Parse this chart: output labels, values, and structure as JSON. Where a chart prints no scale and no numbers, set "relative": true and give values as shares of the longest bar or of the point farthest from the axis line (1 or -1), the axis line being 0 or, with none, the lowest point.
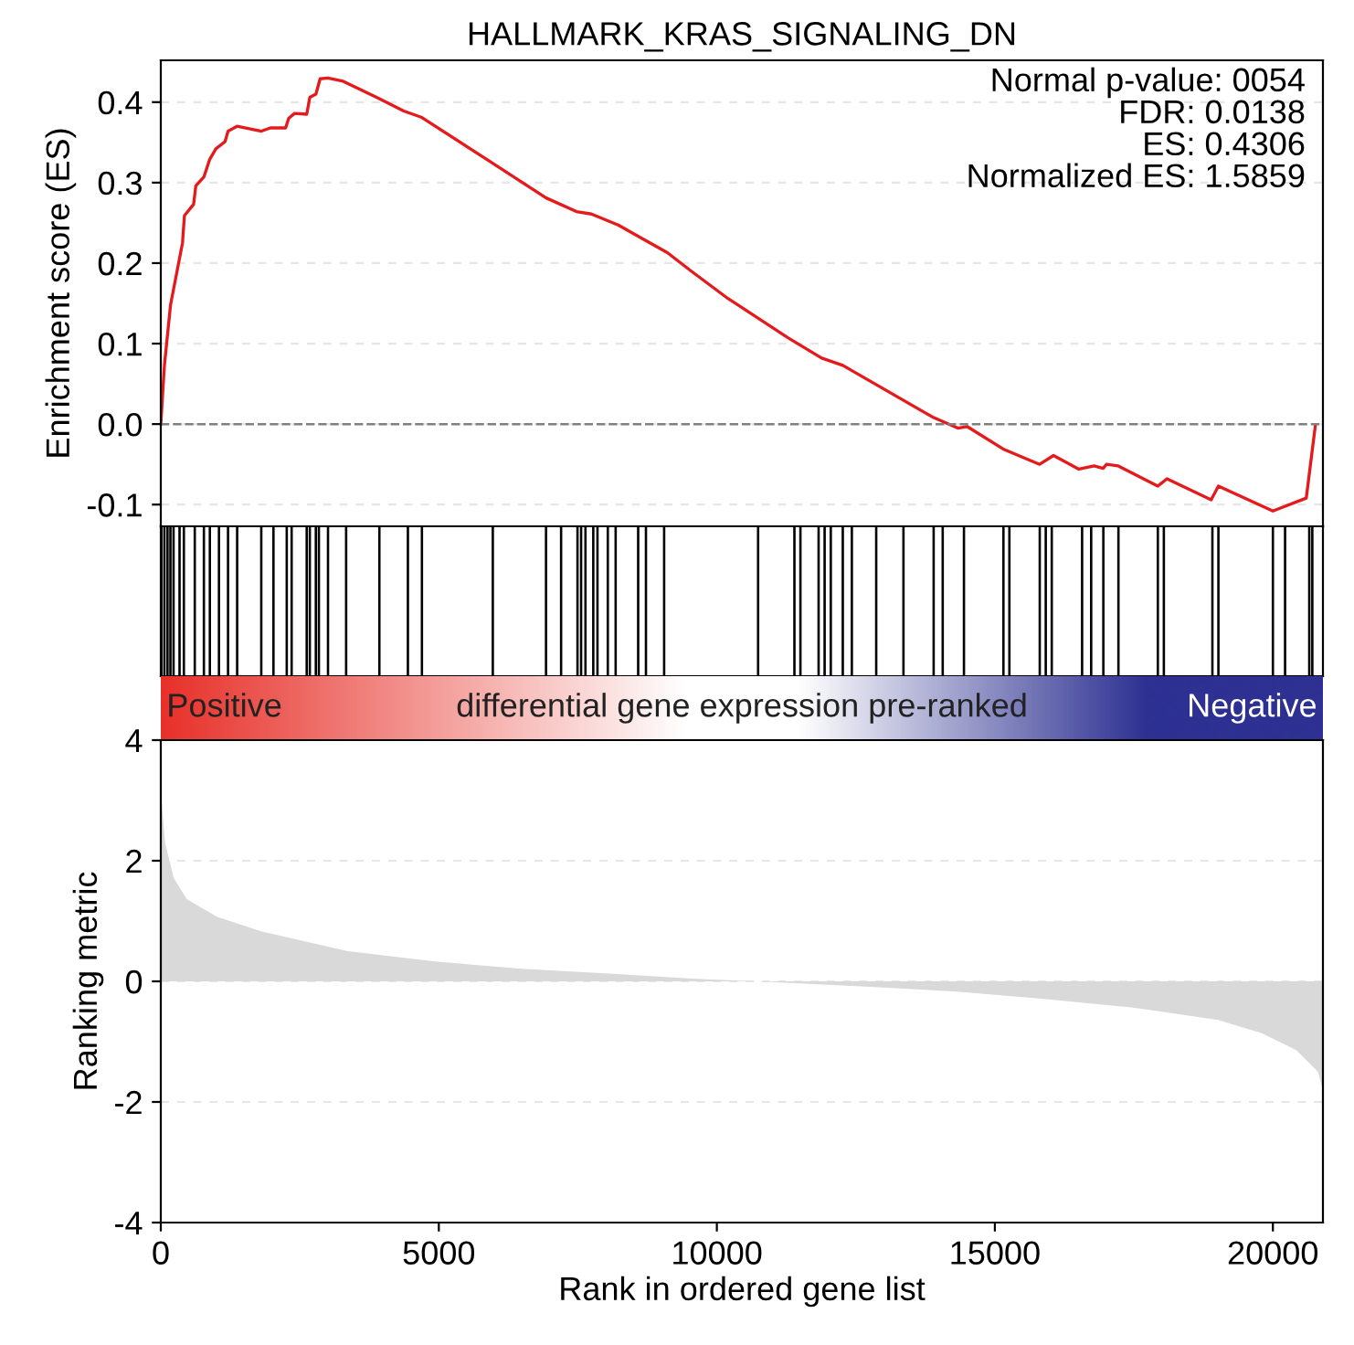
{
  "chart_data": [
    {
      "type": "line",
      "title": "HALLMARK_KRAS_SIGNALING_DN",
      "ylabel": "Enrichment score (ES)",
      "xlim": [
        0,
        20900
      ],
      "ylim": [
        -0.127,
        0.452
      ],
      "yticks": [
        {
          "value": -0.1,
          "label": "-0.1"
        },
        {
          "value": 0.0,
          "label": "0.0"
        },
        0.1,
        0.2,
        0.3,
        0.4
      ],
      "tick_labels": "y",
      "grid": "y",
      "marker": "none",
      "line_style": "solid",
      "annotations": [
        "Normal p-value: 0054",
        "FDR: 0.0138",
        "ES: 0.4306",
        "Normalized ES: 1.5859"
      ],
      "ref_lines": [
        {
          "axis": "y",
          "value": 0,
          "color": "#808080",
          "line_style": "dashed"
        }
      ],
      "series": [
        {
          "color": "#e41a1c",
          "x": [
            0,
            65,
            175,
            390,
            425,
            590,
            630,
            775,
            880,
            990,
            1155,
            1210,
            1370,
            1810,
            1970,
            2245,
            2300,
            2405,
            2625,
            2680,
            2790,
            2865,
            3005,
            3280,
            3880,
            4370,
            4695,
            5835,
            6930,
            7475,
            7745,
            8235,
            8670,
            9110,
            9540,
            10200,
            11285,
            11885,
            12265,
            13900,
            14335,
            14500,
            15150,
            15805,
            16055,
            16510,
            16785,
            16950,
            17005,
            17220,
            17930,
            18095,
            18890,
            19020,
            20000,
            20600,
            20765
          ],
          "values": [
            0,
            0.073,
            0.148,
            0.225,
            0.259,
            0.273,
            0.296,
            0.307,
            0.329,
            0.342,
            0.351,
            0.364,
            0.37,
            0.364,
            0.368,
            0.368,
            0.38,
            0.386,
            0.385,
            0.406,
            0.41,
            0.429,
            0.43,
            0.426,
            0.406,
            0.389,
            0.381,
            0.33,
            0.281,
            0.264,
            0.261,
            0.247,
            0.23,
            0.213,
            0.19,
            0.156,
            0.107,
            0.082,
            0.073,
            0.008,
            -0.005,
            -0.003,
            -0.031,
            -0.05,
            -0.039,
            -0.056,
            -0.052,
            -0.055,
            -0.05,
            -0.052,
            -0.077,
            -0.068,
            -0.094,
            -0.077,
            -0.108,
            -0.092,
            -0.001
          ]
        }
      ]
    },
    {
      "type": "bar",
      "relative": true,
      "tick_labels": false,
      "xlim": [
        0,
        20900
      ],
      "series": [
        {
          "color": "#000000",
          "x": [
            10,
            65,
            121,
            173,
            229,
            337,
            415,
            611,
            775,
            882,
            1046,
            1209,
            1373,
            1807,
            2026,
            2265,
            2353,
            2624,
            2680,
            2788,
            2843,
            3007,
            3333,
            3931,
            4444,
            4696,
            5971,
            6928,
            7199,
            7494,
            7559,
            7637,
            7778,
            7853,
            8039,
            8180,
            8585,
            8725,
            9052,
            10742,
            11395,
            11503,
            11830,
            11938,
            12049,
            12265,
            12428,
            12866,
            13356,
            13899,
            14062,
            14444,
            15154,
            15261,
            15807,
            15915,
            16023,
            16569,
            16732,
            16951,
            17222,
            17931,
            18039,
            18912,
            19020,
            20000,
            20219,
            20654,
            20709
          ],
          "values": [
            1,
            1,
            1,
            1,
            1,
            1,
            1,
            1,
            1,
            1,
            1,
            1,
            1,
            1,
            1,
            1,
            1,
            1,
            1,
            1,
            1,
            1,
            1,
            1,
            1,
            1,
            1,
            1,
            1,
            1,
            1,
            1,
            1,
            1,
            1,
            1,
            1,
            1,
            1,
            1,
            1,
            1,
            1,
            1,
            1,
            1,
            1,
            1,
            1,
            1,
            1,
            1,
            1,
            1,
            1,
            1,
            1,
            1,
            1,
            1,
            1,
            1,
            1,
            1,
            1,
            1,
            1,
            1,
            1
          ]
        }
      ]
    },
    {
      "type": "other",
      "annotations": [
        "Positive",
        "differential gene expression pre-ranked",
        "Negative"
      ],
      "colors": [
        "#e8312a",
        "#ffffff",
        "#2e3192"
      ]
    },
    {
      "type": "area",
      "xlabel": "Rank in ordered gene list",
      "ylabel": "Ranking metric",
      "xlim": [
        0,
        20900
      ],
      "ylim": [
        -4,
        4
      ],
      "xticks": [
        0,
        5000,
        10000,
        15000,
        20000
      ],
      "yticks": [
        -4,
        -2,
        0,
        2,
        4
      ],
      "grid": "y",
      "series": [
        {
          "color": "#d9d9d9",
          "x": [
            0,
            78,
            235,
            470,
            1017,
            1800,
            3365,
            4930,
            6495,
            8060,
            9624,
            10720,
            12755,
            14320,
            15880,
            17450,
            19015,
            19800,
            20420,
            20810,
            20900
          ],
          "values": [
            3.14,
            2.29,
            1.71,
            1.36,
            1.07,
            0.83,
            0.5,
            0.33,
            0.21,
            0.13,
            0.04,
            0,
            -0.09,
            -0.17,
            -0.29,
            -0.43,
            -0.64,
            -0.86,
            -1.14,
            -1.5,
            -1.8
          ]
        }
      ]
    }
  ]
}
